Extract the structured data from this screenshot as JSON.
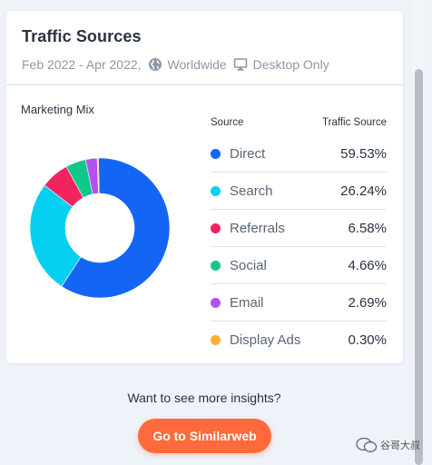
{
  "card": {
    "title": "Traffic Sources",
    "date_range": "Feb 2022 - Apr 2022,",
    "region": "Worldwide",
    "device": "Desktop Only"
  },
  "chart": {
    "title": "Marketing Mix",
    "column_source": "Source",
    "column_traffic": "Traffic Source"
  },
  "chart_data": {
    "type": "pie",
    "title": "Marketing Mix",
    "categories": [
      "Direct",
      "Search",
      "Referrals",
      "Social",
      "Email",
      "Display Ads"
    ],
    "values": [
      59.53,
      26.24,
      6.58,
      4.66,
      2.69,
      0.3
    ],
    "labels": [
      "59.53%",
      "26.24%",
      "6.58%",
      "4.66%",
      "2.69%",
      "0.30%"
    ],
    "colors": [
      "#1565f5",
      "#05d0ef",
      "#f0245f",
      "#10c88a",
      "#b450f0",
      "#ffae36"
    ],
    "donut": true
  },
  "cta": {
    "text": "Want to see more insights?",
    "button_label": "Go to Similarweb"
  },
  "watermark": {
    "text": "谷哥大叔"
  }
}
